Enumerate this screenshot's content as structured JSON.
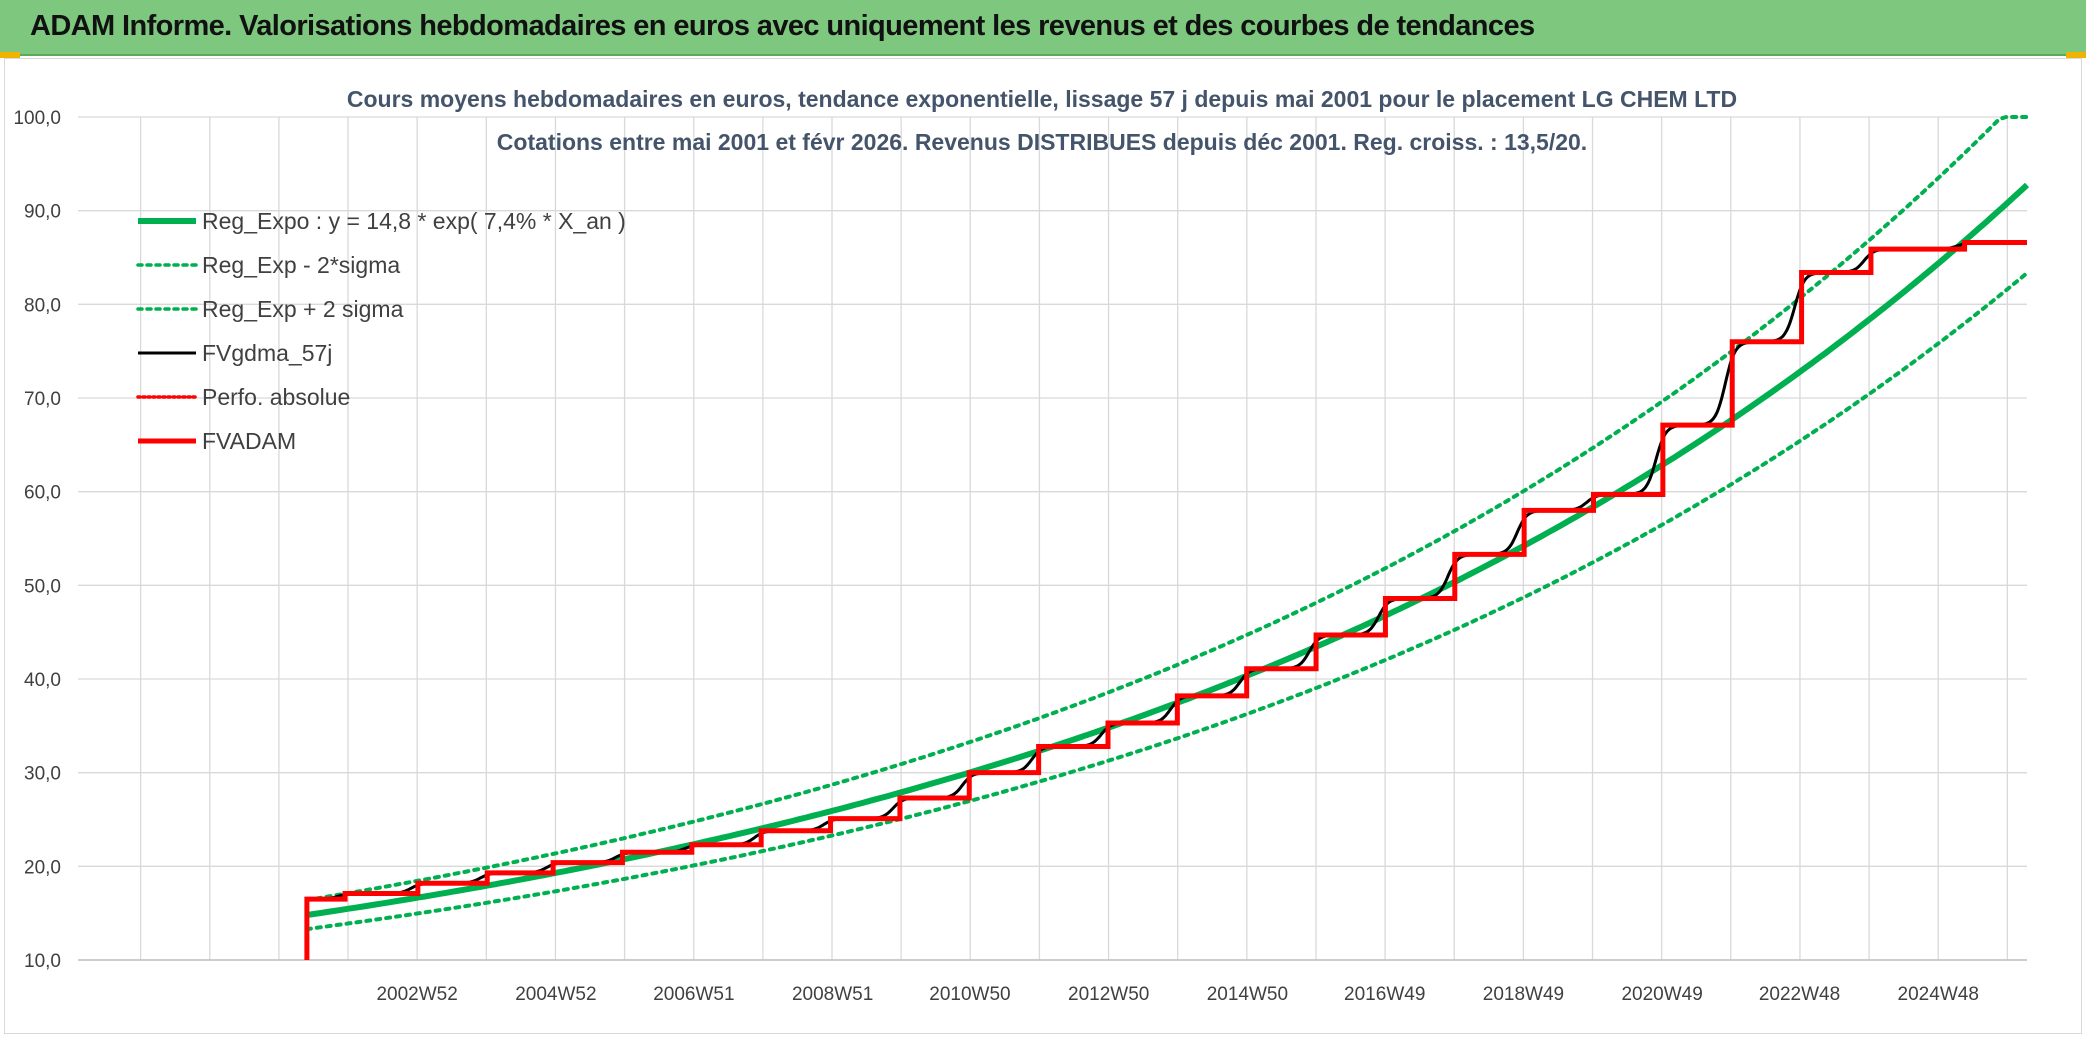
{
  "banner": {
    "title": "ADAM Informe. Valorisations hebdomadaires en euros avec uniquement les revenus et des courbes de tendances"
  },
  "colors": {
    "banner": "#7dc77f",
    "accent_corner": "#f0b400",
    "regression": "#00b050",
    "fvgdma": "#000000",
    "perfo": "#ff0000",
    "fvadam": "#ff0000",
    "grid": "#d9d9d9"
  },
  "chart_data": {
    "type": "line",
    "title": "Cours moyens hebdomadaires en euros, tendance exponentielle, lissage 57 j depuis mai 2001 pour le placement LG CHEM LTD",
    "subtitle": "Cotations entre mai 2001 et févr 2026. Revenus DISTRIBUES depuis déc 2001. Reg. croiss. : 13,5/20.",
    "xlabel": "",
    "ylabel": "",
    "ylim": [
      10,
      100
    ],
    "y_ticks": [
      "10,0",
      "20,0",
      "30,0",
      "40,0",
      "50,0",
      "60,0",
      "70,0",
      "80,0",
      "90,0",
      "100,0"
    ],
    "xlim": [
      1998.1,
      2026.2
    ],
    "x_ticks": [
      {
        "x": 2002.99,
        "label": "2002W52"
      },
      {
        "x": 2004.99,
        "label": "2004W52"
      },
      {
        "x": 2006.98,
        "label": "2006W51"
      },
      {
        "x": 2008.98,
        "label": "2008W51"
      },
      {
        "x": 2010.96,
        "label": "2010W50"
      },
      {
        "x": 2012.96,
        "label": "2012W50"
      },
      {
        "x": 2014.96,
        "label": "2014W50"
      },
      {
        "x": 2016.94,
        "label": "2016W49"
      },
      {
        "x": 2018.94,
        "label": "2018W49"
      },
      {
        "x": 2020.94,
        "label": "2020W49"
      },
      {
        "x": 2022.92,
        "label": "2022W48"
      },
      {
        "x": 2024.92,
        "label": "2024W48"
      }
    ],
    "grid": true,
    "legend_position": "top-left",
    "series": [
      {
        "name": "Reg_Expo : y = 14,8 * exp( 7,4% *  X_an )",
        "kind": "exp_regression",
        "a": 14.8,
        "rate": 0.074,
        "x0": 2001.4,
        "x_end": 2026.2,
        "color": "#00b050",
        "style": "solid"
      },
      {
        "name": "Reg_Exp - 2*sigma",
        "kind": "exp_regression",
        "a": 13.3,
        "rate": 0.074,
        "x0": 2001.4,
        "x_end": 2026.2,
        "color": "#00b050",
        "style": "dotted"
      },
      {
        "name": "Reg_Exp + 2 sigma",
        "kind": "exp_regression",
        "a": 16.4,
        "rate": 0.074,
        "x0": 2001.4,
        "x_end": 2026.2,
        "color": "#00b050",
        "style": "dotted"
      },
      {
        "name": "FVgdma_57j",
        "kind": "smoothed_steps",
        "color": "#000000",
        "style": "solid"
      },
      {
        "name": "Perfo. absolue",
        "kind": "none",
        "color": "#ff0000",
        "style": "dotted"
      },
      {
        "name": "FVADAM",
        "kind": "steps",
        "color": "#ff0000",
        "style": "solid",
        "start": {
          "x": 2001.4,
          "y_from": 10.0,
          "y": 16.5
        },
        "steps": [
          {
            "x": 2001.95,
            "y": 17.1
          },
          {
            "x": 2003.0,
            "y": 18.2
          },
          {
            "x": 2004.0,
            "y": 19.3
          },
          {
            "x": 2004.95,
            "y": 20.4
          },
          {
            "x": 2005.95,
            "y": 21.5
          },
          {
            "x": 2006.95,
            "y": 22.3
          },
          {
            "x": 2007.95,
            "y": 23.8
          },
          {
            "x": 2008.95,
            "y": 25.1
          },
          {
            "x": 2009.95,
            "y": 27.3
          },
          {
            "x": 2010.95,
            "y": 30.0
          },
          {
            "x": 2011.95,
            "y": 32.8
          },
          {
            "x": 2012.95,
            "y": 35.3
          },
          {
            "x": 2013.95,
            "y": 38.2
          },
          {
            "x": 2014.95,
            "y": 41.1
          },
          {
            "x": 2015.95,
            "y": 44.7
          },
          {
            "x": 2016.95,
            "y": 48.6
          },
          {
            "x": 2017.95,
            "y": 53.3
          },
          {
            "x": 2018.95,
            "y": 58.0
          },
          {
            "x": 2019.95,
            "y": 59.7
          },
          {
            "x": 2020.95,
            "y": 67.1
          },
          {
            "x": 2021.95,
            "y": 76.0
          },
          {
            "x": 2022.95,
            "y": 83.4
          },
          {
            "x": 2023.95,
            "y": 85.9
          },
          {
            "x": 2025.3,
            "y": 86.6
          }
        ],
        "end_x": 2026.2
      }
    ]
  }
}
